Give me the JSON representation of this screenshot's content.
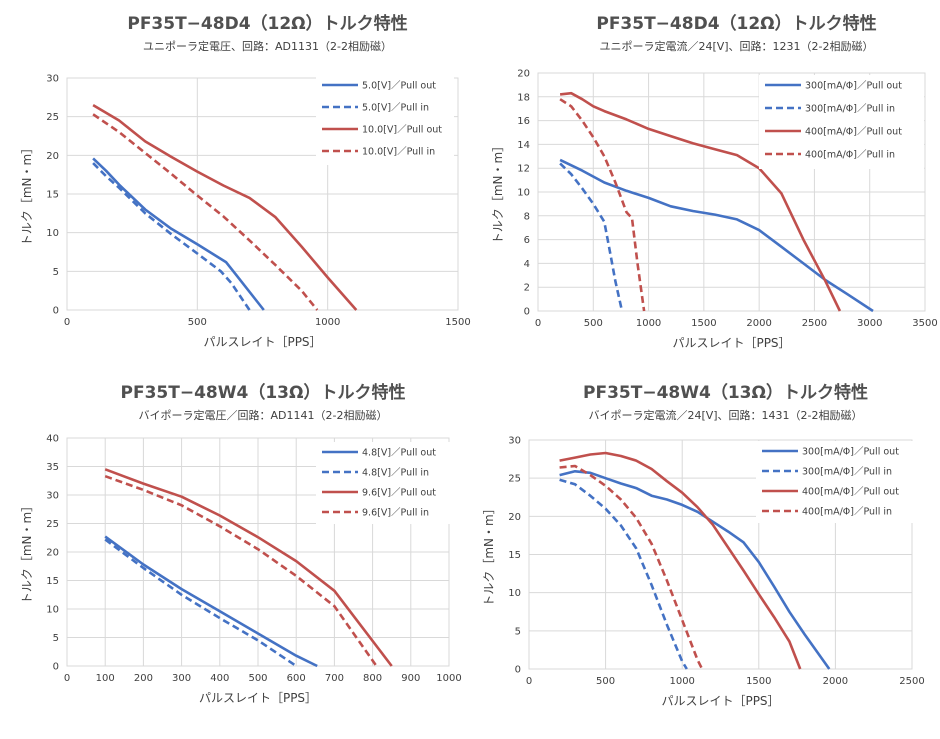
{
  "chart_data": [
    {
      "type": "line",
      "title": "PF35T−48D4（12Ω）トルク特性",
      "subtitle": "ユニポーラ定電圧、回路：AD1131（2-2相励磁）",
      "xlabel": "パルスレイト［PPS］",
      "ylabel": "トルク［mN・m］",
      "xlim": [
        0,
        1500
      ],
      "ylim": [
        0,
        30
      ],
      "xticks": [
        0,
        500,
        1000,
        1500
      ],
      "yticks": [
        0,
        5,
        10,
        15,
        20,
        25,
        30
      ],
      "grid": true,
      "legend_position": "top-right",
      "series": [
        {
          "name": "5.0[V]／Pull out",
          "color": "#4472C4",
          "dash": false,
          "x": [
            100,
            150,
            200,
            300,
            400,
            500,
            610,
            650,
            755
          ],
          "y": [
            19.6,
            18.0,
            16.2,
            13.0,
            10.5,
            8.5,
            6.2,
            4.5,
            0
          ]
        },
        {
          "name": "5.0[V]／Pull in",
          "color": "#4472C4",
          "dash": true,
          "x": [
            100,
            150,
            200,
            300,
            400,
            500,
            590,
            630,
            700
          ],
          "y": [
            19.0,
            17.3,
            15.8,
            12.5,
            9.8,
            7.3,
            5.0,
            3.5,
            0
          ]
        },
        {
          "name": "10.0[V]／Pull out",
          "color": "#C0504D",
          "dash": false,
          "x": [
            100,
            200,
            300,
            400,
            500,
            600,
            700,
            800,
            900,
            1000,
            1110
          ],
          "y": [
            26.5,
            24.5,
            21.8,
            19.8,
            17.9,
            16.1,
            14.5,
            12.0,
            8.2,
            4.2,
            0
          ]
        },
        {
          "name": "10.0[V]／Pull in",
          "color": "#C0504D",
          "dash": true,
          "x": [
            100,
            200,
            300,
            400,
            500,
            600,
            700,
            800,
            900,
            960
          ],
          "y": [
            25.3,
            23.0,
            20.3,
            17.6,
            14.8,
            12.1,
            9.0,
            5.8,
            2.5,
            0
          ]
        }
      ]
    },
    {
      "type": "line",
      "title": "PF35T−48D4（12Ω）トルク特性",
      "subtitle": "ユニポーラ定電流／24[V]、回路：1231（2-2相励磁）",
      "xlabel": "パルスレイト［PPS］",
      "ylabel": "トルク［mN・m］",
      "xlim": [
        0,
        3500
      ],
      "ylim": [
        0,
        20
      ],
      "xticks": [
        0,
        500,
        1000,
        1500,
        2000,
        2500,
        3000,
        3500
      ],
      "yticks": [
        0,
        2,
        4,
        6,
        8,
        10,
        12,
        14,
        16,
        18,
        20
      ],
      "grid": true,
      "legend_position": "top-right",
      "series": [
        {
          "name": "300[mA/Φ]／Pull out",
          "color": "#4472C4",
          "dash": false,
          "x": [
            200,
            400,
            600,
            800,
            1000,
            1200,
            1400,
            1600,
            1800,
            2000,
            2200,
            2400,
            2600,
            2800,
            3030
          ],
          "y": [
            12.7,
            11.8,
            10.8,
            10.1,
            9.5,
            8.8,
            8.4,
            8.1,
            7.7,
            6.8,
            5.4,
            4.0,
            2.6,
            1.4,
            0
          ]
        },
        {
          "name": "300[mA/Φ]／Pull in",
          "color": "#4472C4",
          "dash": true,
          "x": [
            200,
            300,
            400,
            500,
            600,
            650,
            700,
            760
          ],
          "y": [
            12.4,
            11.5,
            10.3,
            9.0,
            7.5,
            5.0,
            2.5,
            0
          ]
        },
        {
          "name": "400[mA/Φ]／Pull out",
          "color": "#C0504D",
          "dash": false,
          "x": [
            200,
            300,
            400,
            500,
            600,
            800,
            1000,
            1200,
            1400,
            1600,
            1800,
            2000,
            2200,
            2400,
            2600,
            2730
          ],
          "y": [
            18.2,
            18.3,
            17.8,
            17.2,
            16.8,
            16.1,
            15.3,
            14.7,
            14.1,
            13.6,
            13.1,
            12.0,
            9.9,
            6.0,
            2.5,
            0
          ]
        },
        {
          "name": "400[mA/Φ]／Pull in",
          "color": "#C0504D",
          "dash": true,
          "x": [
            200,
            300,
            400,
            500,
            600,
            700,
            800,
            850,
            900,
            960
          ],
          "y": [
            17.8,
            17.2,
            16.0,
            14.6,
            13.0,
            10.8,
            8.3,
            7.8,
            4.0,
            0
          ]
        }
      ]
    },
    {
      "type": "line",
      "title": "PF35T−48W4（13Ω）トルク特性",
      "subtitle": "バイポーラ定電圧／回路：AD1141（2-2相励磁）",
      "xlabel": "パルスレイト［PPS］",
      "ylabel": "トルク［mN・m］",
      "xlim": [
        0,
        1000
      ],
      "ylim": [
        0,
        40
      ],
      "xticks": [
        0,
        100,
        200,
        300,
        400,
        500,
        600,
        700,
        800,
        900,
        1000
      ],
      "yticks": [
        0,
        5,
        10,
        15,
        20,
        25,
        30,
        35,
        40
      ],
      "grid": true,
      "legend_position": "top-right",
      "series": [
        {
          "name": "4.8[V]／Pull out",
          "color": "#4472C4",
          "dash": false,
          "x": [
            100,
            200,
            300,
            400,
            500,
            600,
            655
          ],
          "y": [
            22.7,
            17.8,
            13.5,
            9.6,
            5.7,
            1.8,
            0
          ]
        },
        {
          "name": "4.8[V]／Pull in",
          "color": "#4472C4",
          "dash": true,
          "x": [
            100,
            200,
            300,
            400,
            500,
            600
          ],
          "y": [
            22.2,
            17.2,
            12.5,
            8.4,
            4.5,
            0
          ]
        },
        {
          "name": "9.6[V]／Pull out",
          "color": "#C0504D",
          "dash": false,
          "x": [
            100,
            200,
            300,
            400,
            500,
            600,
            700,
            850
          ],
          "y": [
            34.5,
            32.0,
            29.7,
            26.4,
            22.6,
            18.4,
            13.2,
            0
          ]
        },
        {
          "name": "9.6[V]／Pull in",
          "color": "#C0504D",
          "dash": true,
          "x": [
            100,
            200,
            300,
            400,
            500,
            600,
            700,
            810
          ],
          "y": [
            33.3,
            30.9,
            28.2,
            24.5,
            20.5,
            15.8,
            10.5,
            0
          ]
        }
      ]
    },
    {
      "type": "line",
      "title": "PF35T−48W4（13Ω）トルク特性",
      "subtitle": "バイポーラ定電流／24[V]、回路：1431（2-2相励磁）",
      "xlabel": "パルスレイト［PPS］",
      "ylabel": "トルク［mN・m］",
      "xlim": [
        0,
        2500
      ],
      "ylim": [
        0,
        30
      ],
      "xticks": [
        0,
        500,
        1000,
        1500,
        2000,
        2500
      ],
      "yticks": [
        0,
        5,
        10,
        15,
        20,
        25,
        30
      ],
      "grid": true,
      "legend_position": "top-right",
      "series": [
        {
          "name": "300[mA/Φ]／Pull out",
          "color": "#4472C4",
          "dash": false,
          "x": [
            200,
            300,
            400,
            500,
            600,
            700,
            800,
            900,
            1000,
            1100,
            1200,
            1300,
            1400,
            1500,
            1600,
            1700,
            1800,
            1960
          ],
          "y": [
            25.4,
            25.9,
            25.7,
            25.0,
            24.3,
            23.7,
            22.7,
            22.2,
            21.5,
            20.6,
            19.3,
            18.0,
            16.6,
            14.0,
            10.8,
            7.5,
            4.5,
            0
          ]
        },
        {
          "name": "300[mA/Φ]／Pull in",
          "color": "#4472C4",
          "dash": true,
          "x": [
            200,
            300,
            400,
            500,
            600,
            700,
            800,
            900,
            1000,
            1030
          ],
          "y": [
            24.8,
            24.2,
            22.7,
            21.0,
            18.8,
            15.8,
            11.0,
            5.8,
            1.0,
            0
          ]
        },
        {
          "name": "400[mA/Φ]／Pull out",
          "color": "#C0504D",
          "dash": false,
          "x": [
            200,
            300,
            400,
            500,
            600,
            700,
            800,
            900,
            1000,
            1100,
            1200,
            1300,
            1400,
            1500,
            1600,
            1700,
            1770
          ],
          "y": [
            27.3,
            27.7,
            28.1,
            28.3,
            27.9,
            27.3,
            26.2,
            24.6,
            23.1,
            21.2,
            18.9,
            15.9,
            12.9,
            9.8,
            6.8,
            3.6,
            0
          ]
        },
        {
          "name": "400[mA/Φ]／Pull in",
          "color": "#C0504D",
          "dash": true,
          "x": [
            200,
            300,
            400,
            500,
            600,
            700,
            800,
            900,
            1000,
            1100,
            1130
          ],
          "y": [
            26.4,
            26.6,
            25.4,
            24.0,
            22.2,
            19.8,
            16.4,
            11.6,
            6.4,
            1.2,
            0
          ]
        }
      ]
    }
  ],
  "colors": {
    "blue": "#4472C4",
    "red": "#C0504D",
    "grid": "#D9D9D9"
  }
}
